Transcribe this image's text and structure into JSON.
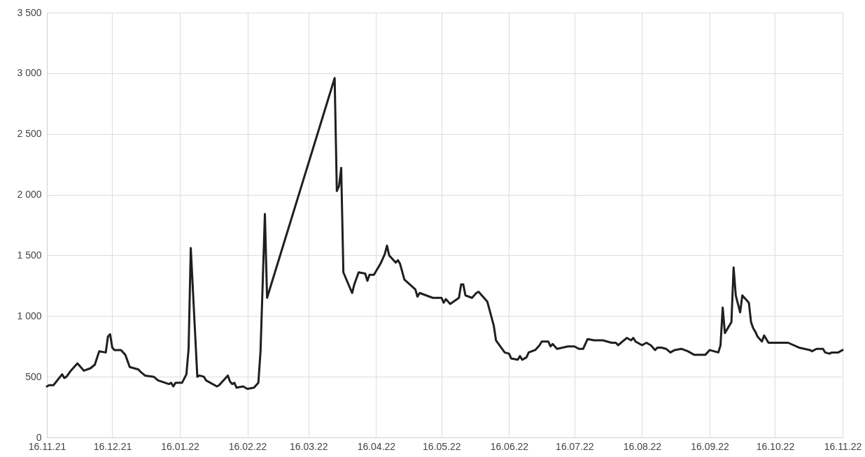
{
  "chart_data": {
    "type": "line",
    "xlim": [
      "2021-11-16",
      "2022-11-16"
    ],
    "ylim": [
      0,
      3500
    ],
    "xticks": [
      {
        "value": "2021-11-16",
        "label": "16.11.21"
      },
      {
        "value": "2021-12-16",
        "label": "16.12.21"
      },
      {
        "value": "2022-01-16",
        "label": "16.01.22"
      },
      {
        "value": "2022-02-16",
        "label": "16.02.22"
      },
      {
        "value": "2022-03-16",
        "label": "16.03.22"
      },
      {
        "value": "2022-04-16",
        "label": "16.04.22"
      },
      {
        "value": "2022-05-16",
        "label": "16.05.22"
      },
      {
        "value": "2022-06-16",
        "label": "16.06.22"
      },
      {
        "value": "2022-07-16",
        "label": "16.07.22"
      },
      {
        "value": "2022-08-16",
        "label": "16.08.22"
      },
      {
        "value": "2022-09-16",
        "label": "16.09.22"
      },
      {
        "value": "2022-10-16",
        "label": "16.10.22"
      },
      {
        "value": "2022-11-16",
        "label": "16.11.22"
      }
    ],
    "yticks": [
      0,
      500,
      {
        "value": 1000,
        "label": "1 000"
      },
      {
        "value": 1500,
        "label": "1 500"
      },
      {
        "value": 2000,
        "label": "2 000"
      },
      {
        "value": 2500,
        "label": "2 500"
      },
      {
        "value": 3000,
        "label": "3 000"
      },
      {
        "value": 3500,
        "label": "3 500"
      }
    ],
    "grid": true,
    "line_style": "solid",
    "series": [
      {
        "color": "#1f1f1f",
        "x": [
          "2021-11-16",
          "2021-11-17",
          "2021-11-19",
          "2021-11-23",
          "2021-11-24",
          "2021-11-25",
          "2021-11-27",
          "2021-11-30",
          "2021-12-01",
          "2021-12-03",
          "2021-12-06",
          "2021-12-08",
          "2021-12-10",
          "2021-12-13",
          "2021-12-14",
          "2021-12-15",
          "2021-12-16",
          "2021-12-17",
          "2021-12-20",
          "2021-12-22",
          "2021-12-24",
          "2021-12-28",
          "2021-12-29",
          "2021-12-31",
          "2022-01-04",
          "2022-01-06",
          "2022-01-11",
          "2022-01-12",
          "2022-01-13",
          "2022-01-14",
          "2022-01-17",
          "2022-01-19",
          "2022-01-20",
          "2022-01-21",
          "2022-01-24",
          "2022-01-25",
          "2022-01-27",
          "2022-01-28",
          "2022-02-02",
          "2022-02-03",
          "2022-02-07",
          "2022-02-08",
          "2022-02-09",
          "2022-02-10",
          "2022-02-11",
          "2022-02-14",
          "2022-02-16",
          "2022-02-19",
          "2022-02-21",
          "2022-02-22",
          "2022-02-24",
          "2022-02-25",
          "2022-03-28",
          "2022-03-29",
          "2022-03-30",
          "2022-03-31",
          "2022-04-01",
          "2022-04-05",
          "2022-04-06",
          "2022-04-08",
          "2022-04-11",
          "2022-04-12",
          "2022-04-13",
          "2022-04-15",
          "2022-04-18",
          "2022-04-20",
          "2022-04-21",
          "2022-04-22",
          "2022-04-25",
          "2022-04-26",
          "2022-04-27",
          "2022-04-29",
          "2022-05-04",
          "2022-05-05",
          "2022-05-06",
          "2022-05-12",
          "2022-05-16",
          "2022-05-17",
          "2022-05-18",
          "2022-05-20",
          "2022-05-24",
          "2022-05-25",
          "2022-05-26",
          "2022-05-27",
          "2022-05-30",
          "2022-06-01",
          "2022-06-02",
          "2022-06-04",
          "2022-06-06",
          "2022-06-09",
          "2022-06-10",
          "2022-06-14",
          "2022-06-16",
          "2022-06-17",
          "2022-06-20",
          "2022-06-21",
          "2022-06-22",
          "2022-06-24",
          "2022-06-25",
          "2022-06-28",
          "2022-06-30",
          "2022-07-01",
          "2022-07-04",
          "2022-07-05",
          "2022-07-06",
          "2022-07-08",
          "2022-07-13",
          "2022-07-14",
          "2022-07-16",
          "2022-07-18",
          "2022-07-20",
          "2022-07-22",
          "2022-07-25",
          "2022-07-26",
          "2022-07-27",
          "2022-07-29",
          "2022-08-02",
          "2022-08-04",
          "2022-08-05",
          "2022-08-09",
          "2022-08-11",
          "2022-08-12",
          "2022-08-13",
          "2022-08-16",
          "2022-08-18",
          "2022-08-20",
          "2022-08-22",
          "2022-08-23",
          "2022-08-25",
          "2022-08-27",
          "2022-08-29",
          "2022-08-31",
          "2022-09-03",
          "2022-09-06",
          "2022-09-07",
          "2022-09-09",
          "2022-09-14",
          "2022-09-16",
          "2022-09-20",
          "2022-09-21",
          "2022-09-22",
          "2022-09-23",
          "2022-09-26",
          "2022-09-27",
          "2022-09-28",
          "2022-09-30",
          "2022-10-01",
          "2022-10-04",
          "2022-10-05",
          "2022-10-06",
          "2022-10-07",
          "2022-10-08",
          "2022-10-10",
          "2022-10-11",
          "2022-10-13",
          "2022-10-16",
          "2022-10-22",
          "2022-10-27",
          "2022-11-01",
          "2022-11-02",
          "2022-11-04",
          "2022-11-07",
          "2022-11-08",
          "2022-11-10",
          "2022-11-11",
          "2022-11-14",
          "2022-11-16"
        ],
        "values": [
          420,
          430,
          430,
          520,
          490,
          500,
          550,
          610,
          590,
          550,
          570,
          600,
          710,
          700,
          830,
          850,
          740,
          720,
          720,
          680,
          580,
          560,
          540,
          510,
          500,
          470,
          440,
          450,
          420,
          450,
          450,
          520,
          730,
          1560,
          500,
          510,
          500,
          470,
          420,
          430,
          510,
          460,
          440,
          450,
          410,
          420,
          400,
          410,
          450,
          710,
          1840,
          1150,
          2960,
          2030,
          2070,
          2220,
          1360,
          1190,
          1260,
          1360,
          1350,
          1290,
          1340,
          1340,
          1430,
          1510,
          1580,
          1500,
          1440,
          1460,
          1430,
          1300,
          1220,
          1160,
          1190,
          1150,
          1150,
          1110,
          1140,
          1100,
          1150,
          1260,
          1260,
          1170,
          1150,
          1190,
          1200,
          1160,
          1120,
          920,
          800,
          700,
          690,
          650,
          640,
          670,
          640,
          660,
          700,
          720,
          760,
          790,
          790,
          750,
          770,
          730,
          750,
          750,
          750,
          730,
          730,
          810,
          800,
          800,
          800,
          800,
          780,
          780,
          760,
          820,
          800,
          820,
          790,
          760,
          780,
          760,
          720,
          740,
          740,
          730,
          700,
          720,
          730,
          710,
          700,
          680,
          680,
          720,
          700,
          760,
          1070,
          860,
          950,
          1400,
          1170,
          1030,
          1170,
          1110,
          950,
          900,
          870,
          830,
          790,
          840,
          780,
          780,
          780,
          740,
          720,
          710,
          730,
          730,
          700,
          690,
          700,
          700,
          720
        ]
      }
    ]
  }
}
